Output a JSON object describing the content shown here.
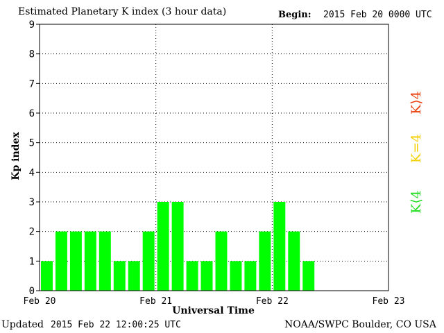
{
  "header": {
    "title": "Estimated Planetary K index (3 hour data)",
    "begin_label": "Begin:",
    "begin_value": "2015 Feb 20 0000 UTC"
  },
  "footer": {
    "updated_label": "Updated",
    "updated_value": "2015 Feb 22 12:00:25 UTC",
    "source": "NOAA/SWPC Boulder, CO USA"
  },
  "legend": {
    "high": "K⟩4",
    "equal": "K=4",
    "low": "K⟨4",
    "colors": {
      "high": "#e8400c",
      "equal": "#f5d000",
      "low": "#22dd22"
    }
  },
  "chart_data": {
    "type": "bar",
    "xlabel": "Universal Time",
    "ylabel": "Kp index",
    "ylim": [
      0,
      9
    ],
    "yticks": [
      "0",
      "1",
      "2",
      "3",
      "4",
      "5",
      "6",
      "7",
      "8",
      "9"
    ],
    "xticks": [
      "Feb 20",
      "Feb 21",
      "Feb 22",
      "Feb 23"
    ],
    "interval_hours": 3,
    "grid": "dotted",
    "bar_color": "#00ff00",
    "values": [
      1,
      2,
      2,
      2,
      2,
      1,
      1,
      2,
      3,
      3,
      1,
      1,
      2,
      1,
      1,
      2,
      3,
      2,
      1
    ]
  }
}
